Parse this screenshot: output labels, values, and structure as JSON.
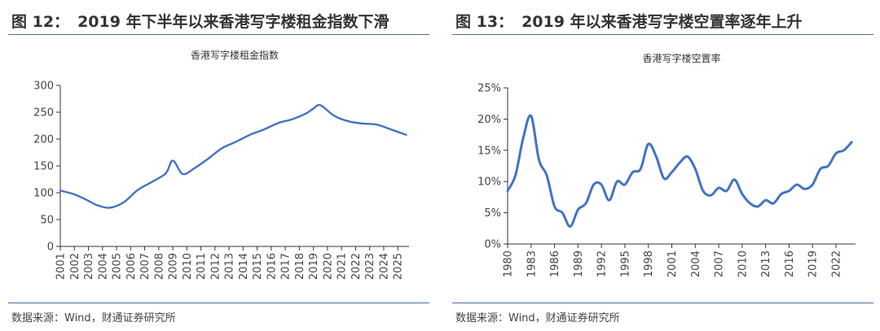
{
  "figures": [
    {
      "number": "图 12：",
      "caption": "2019 年下半年以来香港写字楼租金指数下滑",
      "source": "数据来源：Wind，财通证券研究所",
      "chart_data": {
        "type": "line",
        "title": "香港写字楼租金指数",
        "xlabel": "",
        "ylabel": "",
        "ylim": [
          0,
          300
        ],
        "yticks": [
          "0",
          "50",
          "100",
          "150",
          "200",
          "250",
          "300"
        ],
        "xlim": [
          2001,
          2025.8
        ],
        "xticks": [
          "2001",
          "2002",
          "2003",
          "2004",
          "2005",
          "2006",
          "2007",
          "2008",
          "2009",
          "2010",
          "2011",
          "2012",
          "2013",
          "2014",
          "2015",
          "2016",
          "2017",
          "2018",
          "2019",
          "2020",
          "2021",
          "2022",
          "2023",
          "2024",
          "2025"
        ],
        "grid": false,
        "legend": "none",
        "series": [
          {
            "color": "#4472c4",
            "x": [
              2001.0,
              2002.0,
              2003.0,
              2003.6,
              2004.5,
              2005.5,
              2006.5,
              2007.5,
              2008.5,
              2009.0,
              2009.7,
              2010.5,
              2011.5,
              2012.5,
              2013.5,
              2014.5,
              2015.5,
              2016.5,
              2017.5,
              2018.5,
              2019.0,
              2019.5,
              2020.5,
              2021.5,
              2022.5,
              2023.5,
              2024.5,
              2025.6
            ],
            "values": [
              104,
              97,
              85,
              77,
              72,
              82,
              105,
              120,
              136,
              160,
              135,
              145,
              163,
              183,
              195,
              208,
              218,
              230,
              237,
              248,
              257,
              263,
              243,
              233,
              229,
              227,
              218,
              208
            ]
          }
        ]
      }
    },
    {
      "number": "图 13：",
      "caption": "2019 年以来香港写字楼空置率逐年上升",
      "source": "数据来源：Wind，财通证券研究所",
      "chart_data": {
        "type": "line",
        "title": "香港写字楼空置率",
        "xlabel": "",
        "ylabel": "",
        "ylim": [
          0,
          25
        ],
        "yticks": [
          "0%",
          "5%",
          "10%",
          "15%",
          "20%",
          "25%"
        ],
        "xlim": [
          1980,
          2024.5
        ],
        "xticks": [
          "1980",
          "1983",
          "1986",
          "1989",
          "1992",
          "1995",
          "1998",
          "2001",
          "2004",
          "2007",
          "2010",
          "2013",
          "2016",
          "2019",
          "2022"
        ],
        "grid": false,
        "legend": "none",
        "series": [
          {
            "color": "#4472c4",
            "x": [
              1980,
              1981,
              1982,
              1983,
              1984,
              1985,
              1986,
              1987,
              1988,
              1989,
              1990,
              1991,
              1992,
              1993,
              1994,
              1995,
              1996,
              1997,
              1998,
              1999,
              2000,
              2001,
              2002,
              2003,
              2004,
              2005,
              2006,
              2007,
              2008,
              2009,
              2010,
              2011,
              2012,
              2013,
              2014,
              2015,
              2016,
              2017,
              2018,
              2019,
              2020,
              2021,
              2022,
              2023,
              2024
            ],
            "values": [
              8.5,
              11.0,
              17.0,
              20.5,
              13.5,
              11.0,
              6.0,
              5.0,
              2.8,
              5.5,
              6.5,
              9.5,
              9.5,
              7.0,
              10.0,
              9.5,
              11.5,
              12.0,
              16.0,
              14.0,
              10.5,
              11.5,
              13.0,
              14.0,
              12.0,
              8.5,
              7.8,
              9.0,
              8.5,
              10.3,
              8.0,
              6.5,
              6.0,
              7.0,
              6.5,
              8.0,
              8.5,
              9.5,
              8.8,
              9.5,
              12.0,
              12.5,
              14.5,
              15.0,
              16.3
            ]
          }
        ]
      }
    }
  ]
}
